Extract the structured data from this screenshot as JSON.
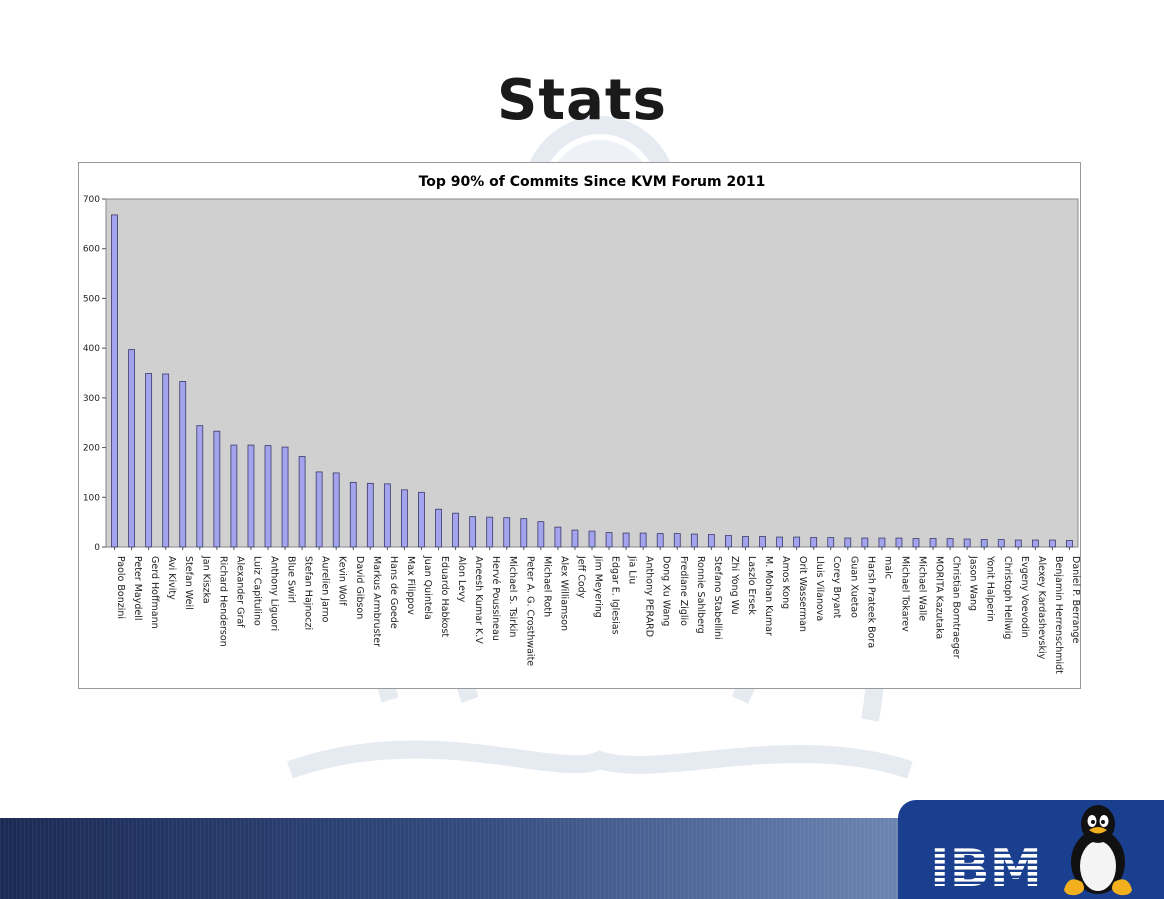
{
  "slide": {
    "title": "Stats",
    "logo_text": "IBM",
    "mascot_icon": "tux-penguin-icon"
  },
  "colors": {
    "plot_background": "#d0d0d0",
    "bar_fill": "#a4a4ee",
    "bar_stroke": "#3a3a6a",
    "footer_dark": "#1b2a55",
    "footer_light": "#9db0d3",
    "logo_panel": "#1a3f8f"
  },
  "chart_data": {
    "type": "bar",
    "title": "Top 90% of Commits Since KVM Forum 2011",
    "xlabel": "",
    "ylabel": "",
    "ylim": [
      0,
      700
    ],
    "yticks": [
      0,
      100,
      200,
      300,
      400,
      500,
      600,
      700
    ],
    "grid": false,
    "legend": "none",
    "categories": [
      "Paolo Bonzini",
      "Peter Maydell",
      "Gerd Hoffmann",
      "Avi Kivity",
      "Stefan Weil",
      "Jan Kiszka",
      "Richard Henderson",
      "Alexander Graf",
      "Luiz Capitulino",
      "Anthony Liguori",
      "Blue Swirl",
      "Stefan Hajnoczi",
      "Aurelien Jarno",
      "Kevin Wolf",
      "David Gibson",
      "Markus Armbruster",
      "Hans de Goede",
      "Max Filippov",
      "Juan Quintela",
      "Eduardo Habkost",
      "Alon Levy",
      "Aneesh Kumar K.V",
      "Hervé Poussineau",
      "Michael S. Tsirkin",
      "Peter A. G. Crosthwaite",
      "Michael Roth",
      "Alex Williamson",
      "Jeff Cody",
      "Jim Meyering",
      "Edgar E. Iglesias",
      "Jia Liu",
      "Anthony PERARD",
      "Dong Xu Wang",
      "Fredlane Ziglio",
      "Ronnie Sahlberg",
      "Stefano Stabellini",
      "Zhi Yong Wu",
      "Laszlo Ersek",
      "M. Mohan Kumar",
      "Amos Kong",
      "Orit Wasserman",
      "Lluis Vilanova",
      "Corey Bryant",
      "Guan Xuetao",
      "Harsh Prateek Bora",
      "malc",
      "Michael Tokarev",
      "Michael Walle",
      "MORITA Kazutaka",
      "Christian Borntraeger",
      "Jason Wang",
      "Yonit Halperin",
      "Christoph Hellwig",
      "Evgeny Voevodin",
      "Alexey Kardashevskiy",
      "Benjamin Herrenschmidt",
      "Daniel P. Berrange"
    ],
    "values": [
      668,
      397,
      349,
      348,
      333,
      244,
      233,
      205,
      205,
      204,
      201,
      182,
      151,
      149,
      130,
      128,
      127,
      115,
      110,
      76,
      68,
      61,
      60,
      59,
      57,
      51,
      40,
      34,
      32,
      29,
      28,
      28,
      27,
      27,
      26,
      25,
      23,
      21,
      21,
      20,
      20,
      19,
      19,
      18,
      18,
      18,
      18,
      17,
      17,
      17,
      16,
      15,
      15,
      14,
      14,
      14,
      13
    ]
  }
}
